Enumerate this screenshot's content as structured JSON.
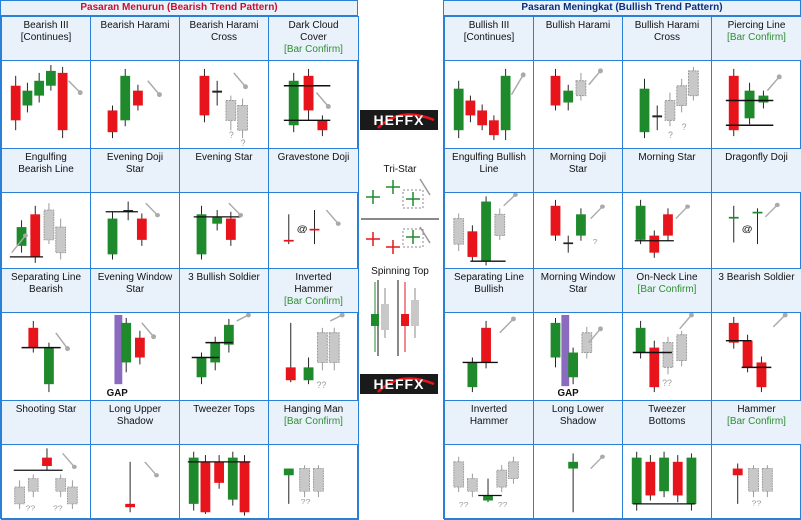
{
  "left_title": "Pasaran Menurun (Bearish Trend Pattern)",
  "right_title": "Pasaran Meningkat (Bullish Trend Pattern)",
  "logo_text": "HEFFX",
  "center": {
    "tristar": "Tri-Star",
    "spinning_top": "Spinning Top"
  },
  "bearish": [
    {
      "title": "Bearish III\n[Continues]",
      "sub": ""
    },
    {
      "title": "Bearish Harami",
      "sub": ""
    },
    {
      "title": "Bearish Harami\nCross",
      "sub": ""
    },
    {
      "title": "Dark Cloud\nCover",
      "sub": "[Bar Confirm]"
    },
    {
      "title": "Engulfing\nBearish Line",
      "sub": ""
    },
    {
      "title": "Evening Doji\nStar",
      "sub": ""
    },
    {
      "title": "Evening Star",
      "sub": ""
    },
    {
      "title": "Gravestone Doji",
      "sub": ""
    },
    {
      "title": "Separating  Line\nBearish",
      "sub": ""
    },
    {
      "title": "Evening Window\nStar",
      "sub": ""
    },
    {
      "title": "3 Bullish Soldier",
      "sub": ""
    },
    {
      "title": "Inverted\nHammer",
      "sub": "[Bar Confirm]"
    },
    {
      "title": "Shooting Star",
      "sub": ""
    },
    {
      "title": "Long Upper\nShadow",
      "sub": ""
    },
    {
      "title": "Tweezer Tops",
      "sub": ""
    },
    {
      "title": "Hanging Man",
      "sub": "[Bar Confirm]"
    }
  ],
  "bullish": [
    {
      "title": "Bullish III\n[Continues]",
      "sub": ""
    },
    {
      "title": "Bullish Harami",
      "sub": ""
    },
    {
      "title": "Bullish Harami\nCross",
      "sub": ""
    },
    {
      "title": "Piercing Line",
      "sub": "[Bar Confirm]"
    },
    {
      "title": "Engulfing Bullish\nLine",
      "sub": ""
    },
    {
      "title": "Morning Doji\nStar",
      "sub": ""
    },
    {
      "title": "Morning Star",
      "sub": ""
    },
    {
      "title": "Dragonfly Doji",
      "sub": ""
    },
    {
      "title": "Separating  Line\nBullish",
      "sub": ""
    },
    {
      "title": "Morning Window\nStar",
      "sub": ""
    },
    {
      "title": "On-Neck Line",
      "sub": "[Bar Confirm]"
    },
    {
      "title": "3 Bearish Soldier",
      "sub": ""
    },
    {
      "title": "Inverted\nHammer",
      "sub": ""
    },
    {
      "title": "Long Lower\nShadow",
      "sub": ""
    },
    {
      "title": "Tweezer\nBottoms",
      "sub": ""
    },
    {
      "title": "Hammer",
      "sub": "[Bar Confirm]"
    }
  ],
  "labels": {
    "gap": "GAP",
    "q": "?",
    "qq": "??",
    "at": "@"
  },
  "colors": {
    "red": "#e8141b",
    "green": "#1f8a2c",
    "grey": "#c8c8c8",
    "border": "#2a7fd6",
    "header_bg": "#e9f1fb",
    "purple": "#8a6bbf"
  }
}
